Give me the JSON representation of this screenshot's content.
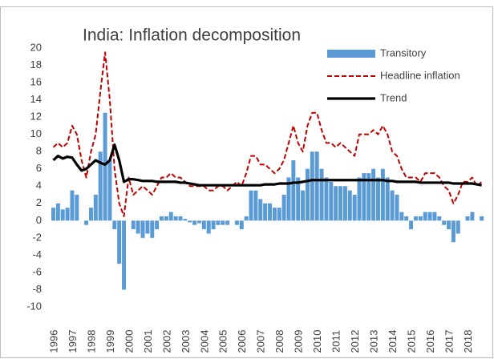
{
  "chart_data": {
    "type": "combo",
    "title": "India: Inflation decomposition",
    "x": [
      1996,
      1996.25,
      1996.5,
      1996.75,
      1997,
      1997.25,
      1997.5,
      1997.75,
      1998,
      1998.25,
      1998.5,
      1998.75,
      1999,
      1999.25,
      1999.5,
      1999.75,
      2000,
      2000.25,
      2000.5,
      2000.75,
      2001,
      2001.25,
      2001.5,
      2001.75,
      2002,
      2002.25,
      2002.5,
      2002.75,
      2003,
      2003.25,
      2003.5,
      2003.75,
      2004,
      2004.25,
      2004.5,
      2004.75,
      2005,
      2005.25,
      2005.5,
      2005.75,
      2006,
      2006.25,
      2006.5,
      2006.75,
      2007,
      2007.25,
      2007.5,
      2007.75,
      2008,
      2008.25,
      2008.5,
      2008.75,
      2009,
      2009.25,
      2009.5,
      2009.75,
      2010,
      2010.25,
      2010.5,
      2010.75,
      2011,
      2011.25,
      2011.5,
      2011.75,
      2012,
      2012.25,
      2012.5,
      2012.75,
      2013,
      2013.25,
      2013.5,
      2013.75,
      2014,
      2014.25,
      2014.5,
      2014.75,
      2015,
      2015.25,
      2015.5,
      2015.75,
      2016,
      2016.25,
      2016.5,
      2016.75,
      2017,
      2017.25,
      2017.5,
      2017.75,
      2018,
      2018.25,
      2018.5,
      2018.75
    ],
    "series": [
      {
        "name": "Transitory",
        "kind": "bar",
        "color": "#5b9bd5",
        "values": [
          1.5,
          2,
          1.3,
          1.5,
          3.5,
          3,
          0,
          -0.5,
          1.5,
          3,
          8,
          12.5,
          7,
          -1,
          -5,
          -8,
          0,
          -1,
          -1.5,
          -2,
          -1.5,
          -2,
          -1,
          0.5,
          0.5,
          1,
          0.5,
          0.5,
          0.2,
          -0.2,
          -0.5,
          -0.3,
          -1,
          -1.5,
          -1,
          -0.5,
          -0.5,
          -0.5,
          0,
          -0.5,
          -1,
          0.5,
          3.5,
          3.5,
          2.5,
          2,
          2,
          1.5,
          1.5,
          3,
          5,
          7,
          5,
          3.5,
          6,
          8,
          8,
          6,
          5,
          4.5,
          4,
          4,
          4,
          3.5,
          3,
          5,
          5.5,
          5.5,
          6,
          5,
          6,
          5,
          3.5,
          3,
          1,
          0.5,
          -1,
          0.5,
          0.5,
          1,
          1,
          1,
          0.5,
          -0.5,
          -1,
          -2.5,
          -1.5,
          0,
          0.5,
          1,
          0,
          0.5
        ]
      },
      {
        "name": "Headline inflation",
        "kind": "dashed",
        "color": "#c00000",
        "values": [
          8.5,
          9,
          8.5,
          9,
          11,
          10,
          7,
          5,
          8,
          10,
          15,
          19.5,
          14,
          6,
          2,
          0.5,
          5,
          3,
          3.5,
          4,
          3.5,
          3,
          4,
          5,
          5,
          5.5,
          5,
          5,
          4.5,
          4,
          4,
          4,
          4,
          3.5,
          3.5,
          4,
          4,
          3.5,
          4,
          4.5,
          4,
          5.5,
          7.5,
          7.5,
          6.5,
          6.5,
          6,
          5.5,
          6,
          7,
          9,
          11,
          9,
          8,
          11,
          12.5,
          12.5,
          10.5,
          9,
          9,
          8.5,
          9,
          8.5,
          8,
          7.5,
          10,
          10,
          10,
          10.5,
          10,
          11,
          10,
          8,
          7.5,
          6,
          5,
          5,
          5,
          4.5,
          5.5,
          5.5,
          5.5,
          5,
          4,
          3.5,
          2,
          3,
          4.5,
          4.5,
          5,
          4,
          4.5
        ]
      },
      {
        "name": "Trend",
        "kind": "line",
        "color": "#000000",
        "values": [
          7,
          7.5,
          7.2,
          7.4,
          7.3,
          6.5,
          5.8,
          6,
          6.5,
          7,
          6.7,
          6.5,
          7,
          8.8,
          7,
          4.5,
          4.8,
          4.8,
          4.7,
          4.6,
          4.6,
          4.6,
          4.5,
          4.5,
          4.5,
          4.5,
          4.5,
          4.4,
          4.4,
          4.3,
          4.2,
          4.1,
          4.1,
          4.1,
          4.1,
          4.1,
          4.1,
          4.1,
          4.1,
          4.1,
          4.1,
          4.1,
          4.1,
          4.1,
          4.1,
          4.2,
          4.2,
          4.2,
          4.3,
          4.3,
          4.3,
          4.4,
          4.4,
          4.5,
          4.6,
          4.7,
          4.7,
          4.7,
          4.7,
          4.7,
          4.7,
          4.7,
          4.7,
          4.7,
          4.7,
          4.7,
          4.7,
          4.7,
          4.7,
          4.7,
          4.7,
          4.6,
          4.6,
          4.5,
          4.5,
          4.5,
          4.5,
          4.5,
          4.4,
          4.4,
          4.4,
          4.4,
          4.4,
          4.4,
          4.4,
          4.3,
          4.3,
          4.3,
          4.3,
          4.3,
          4.2,
          4.1
        ]
      }
    ],
    "xlim": [
      1996,
      2019
    ],
    "xticks": [
      1996,
      1997,
      1998,
      1999,
      2000,
      2001,
      2002,
      2003,
      2004,
      2005,
      2006,
      2007,
      2008,
      2009,
      2010,
      2011,
      2012,
      2013,
      2014,
      2015,
      2016,
      2017,
      2018
    ],
    "ylim": [
      -10,
      20
    ],
    "yticks": [
      -10,
      -8,
      -6,
      -4,
      -2,
      0,
      2,
      4,
      6,
      8,
      10,
      12,
      14,
      16,
      18,
      20
    ]
  }
}
